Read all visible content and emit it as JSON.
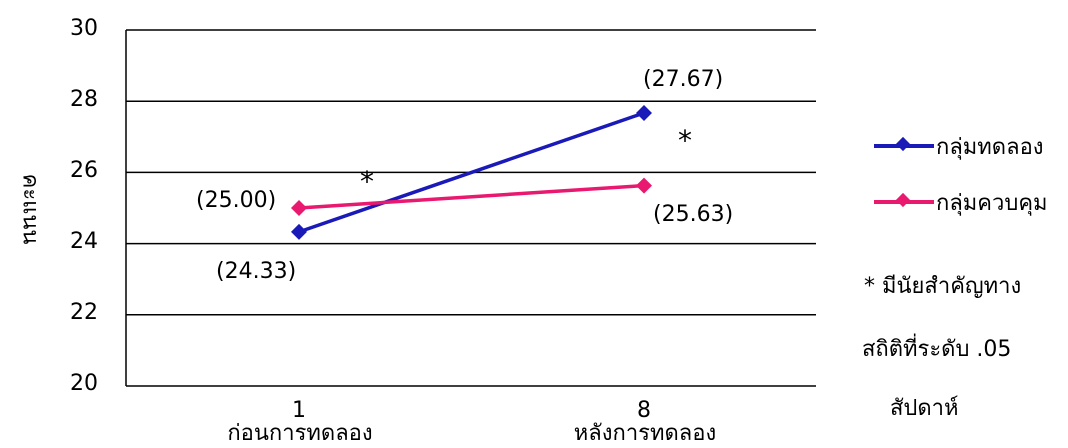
{
  "chart_data": {
    "type": "line",
    "title": "",
    "ylabel": "คะแนน",
    "xlabel": "สัปดาห์",
    "x_ticks": [
      "1",
      "8"
    ],
    "categories": [
      "ก่อนการทดลอง",
      "หลังการทดลอง"
    ],
    "ylim": [
      20,
      30
    ],
    "yticks": [
      "20",
      "22",
      "24",
      "26",
      "28",
      "30"
    ],
    "grid": true,
    "legend_position": "right",
    "series": [
      {
        "name": "กลุ่มทดลอง",
        "color": "#1a1ab8",
        "values": [
          24.33,
          27.67
        ],
        "labels": [
          "(24.33)",
          "(27.67)"
        ]
      },
      {
        "name": "กลุ่มควบคุม",
        "color": "#e8196f",
        "values": [
          25.0,
          25.63
        ],
        "labels": [
          "(25.00)",
          "(25.63)"
        ]
      }
    ],
    "significance_marker": "*",
    "note": [
      "*  มีนัยสำคัญทาง",
      "สถิติที่ระดับ .05"
    ]
  }
}
